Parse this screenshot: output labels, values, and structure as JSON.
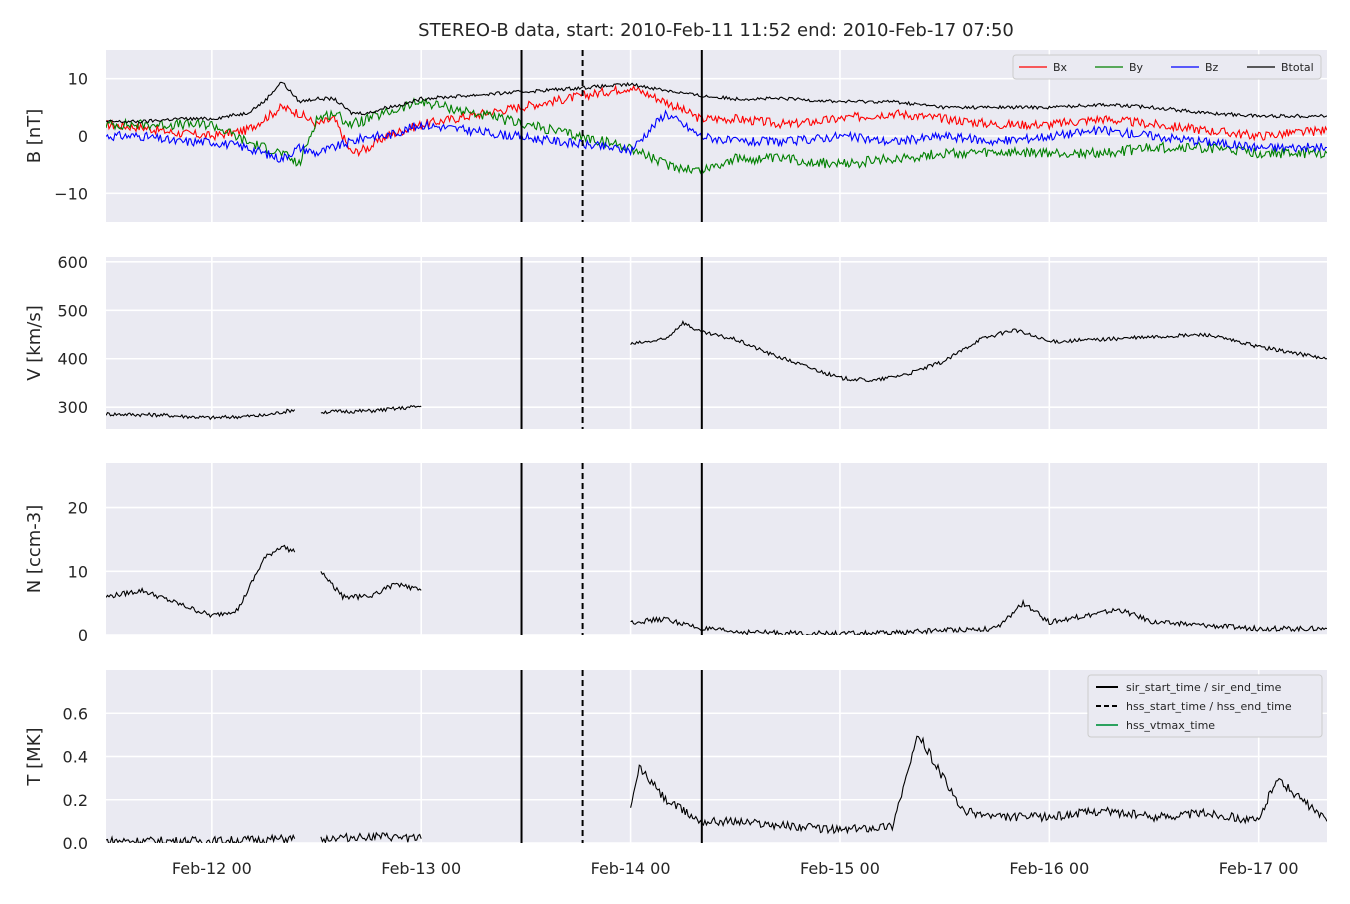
{
  "chart_data": {
    "type": "line",
    "title": "STEREO-B data, start: 2010-Feb-11 11:52  end: 2010-Feb-17 07:50",
    "x_range": [
      "2010-02-11T11:52",
      "2010-02-17T07:50"
    ],
    "x_ticks": [
      {
        "t": "2010-02-12T00:00",
        "label": "Feb-12 00"
      },
      {
        "t": "2010-02-13T00:00",
        "label": "Feb-13 00"
      },
      {
        "t": "2010-02-14T00:00",
        "label": "Feb-14 00"
      },
      {
        "t": "2010-02-15T00:00",
        "label": "Feb-15 00"
      },
      {
        "t": "2010-02-16T00:00",
        "label": "Feb-16 00"
      },
      {
        "t": "2010-02-17T00:00",
        "label": "Feb-17 00"
      }
    ],
    "grid": true,
    "event_lines": [
      {
        "t": "2010-02-13T11:30",
        "style": "solid",
        "kind": "sir_start_time"
      },
      {
        "t": "2010-02-13T18:30",
        "style": "dashed",
        "kind": "hss_start_time"
      },
      {
        "t": "2010-02-14T08:10",
        "style": "solid",
        "kind": "sir_end_time"
      }
    ],
    "panels": [
      {
        "id": "B",
        "ylabel": "B [nT]",
        "ylim": [
          -15,
          15
        ],
        "yticks": [
          -10,
          0,
          10
        ],
        "legend_placement": "top-right",
        "series": [
          {
            "name": "Bx",
            "color": "#ff0000",
            "x": [
              "2010-02-11T11:52",
              "2010-02-11T16:00",
              "2010-02-11T20:00",
              "2010-02-12T00:00",
              "2010-02-12T04:00",
              "2010-02-12T06:00",
              "2010-02-12T08:00",
              "2010-02-12T10:00",
              "2010-02-12T12:00",
              "2010-02-12T14:00",
              "2010-02-12T16:00",
              "2010-02-12T18:00",
              "2010-02-12T20:00",
              "2010-02-12T22:00",
              "2010-02-13T00:00",
              "2010-02-14T00:00",
              "2010-02-14T04:00",
              "2010-02-14T08:00",
              "2010-02-14T12:00",
              "2010-02-14T18:00",
              "2010-02-15T00:00",
              "2010-02-15T06:00",
              "2010-02-15T12:00",
              "2010-02-15T18:00",
              "2010-02-16T00:00",
              "2010-02-16T06:00",
              "2010-02-16T12:00",
              "2010-02-16T18:00",
              "2010-02-17T00:00",
              "2010-02-17T07:50"
            ],
            "values": [
              2,
              1.5,
              0.5,
              0,
              1,
              3,
              5,
              4,
              2,
              3,
              -3,
              -2,
              0,
              1,
              2,
              8.5,
              6,
              3,
              3,
              2,
              3,
              4,
              3,
              2,
              2,
              3,
              2,
              1,
              0,
              1
            ]
          },
          {
            "name": "By",
            "color": "#008000",
            "x": [
              "2010-02-11T11:52",
              "2010-02-11T16:00",
              "2010-02-11T20:00",
              "2010-02-12T00:00",
              "2010-02-12T04:00",
              "2010-02-12T06:00",
              "2010-02-12T08:00",
              "2010-02-12T10:00",
              "2010-02-12T12:00",
              "2010-02-12T14:00",
              "2010-02-12T16:00",
              "2010-02-12T18:00",
              "2010-02-12T20:00",
              "2010-02-12T22:00",
              "2010-02-13T00:00",
              "2010-02-14T00:00",
              "2010-02-14T04:00",
              "2010-02-14T08:00",
              "2010-02-14T12:00",
              "2010-02-14T18:00",
              "2010-02-15T00:00",
              "2010-02-15T06:00",
              "2010-02-15T12:00",
              "2010-02-15T18:00",
              "2010-02-16T00:00",
              "2010-02-16T06:00",
              "2010-02-16T12:00",
              "2010-02-16T18:00",
              "2010-02-17T00:00",
              "2010-02-17T07:50"
            ],
            "values": [
              2,
              2,
              2,
              2,
              -1,
              -2,
              -3,
              -5,
              3,
              4,
              2,
              3,
              4,
              5,
              6,
              -2,
              -5,
              -6,
              -4,
              -4,
              -5,
              -4,
              -3,
              -3,
              -3,
              -3,
              -2,
              -2,
              -3,
              -3
            ]
          },
          {
            "name": "Bz",
            "color": "#0000ff",
            "x": [
              "2010-02-11T11:52",
              "2010-02-11T16:00",
              "2010-02-11T20:00",
              "2010-02-12T00:00",
              "2010-02-12T04:00",
              "2010-02-12T06:00",
              "2010-02-12T08:00",
              "2010-02-12T10:00",
              "2010-02-12T12:00",
              "2010-02-12T14:00",
              "2010-02-12T16:00",
              "2010-02-12T18:00",
              "2010-02-12T20:00",
              "2010-02-12T22:00",
              "2010-02-13T00:00",
              "2010-02-14T00:00",
              "2010-02-14T04:00",
              "2010-02-14T08:00",
              "2010-02-14T12:00",
              "2010-02-14T18:00",
              "2010-02-15T00:00",
              "2010-02-15T06:00",
              "2010-02-15T12:00",
              "2010-02-15T18:00",
              "2010-02-16T00:00",
              "2010-02-16T06:00",
              "2010-02-16T12:00",
              "2010-02-16T18:00",
              "2010-02-17T00:00",
              "2010-02-17T07:50"
            ],
            "values": [
              0,
              0,
              -1,
              -1,
              -2,
              -3,
              -4,
              -2,
              -3,
              -2,
              -1,
              0,
              0,
              1,
              2,
              -2.5,
              4,
              0,
              -1,
              -1,
              0,
              -1,
              0,
              -1,
              0,
              1,
              0,
              -1,
              -2,
              -2
            ]
          },
          {
            "name": "Btotal",
            "color": "#000000",
            "x": [
              "2010-02-11T11:52",
              "2010-02-11T16:00",
              "2010-02-11T20:00",
              "2010-02-12T00:00",
              "2010-02-12T04:00",
              "2010-02-12T06:00",
              "2010-02-12T08:00",
              "2010-02-12T10:00",
              "2010-02-12T12:00",
              "2010-02-12T14:00",
              "2010-02-12T16:00",
              "2010-02-12T18:00",
              "2010-02-12T20:00",
              "2010-02-12T22:00",
              "2010-02-13T00:00",
              "2010-02-14T00:00",
              "2010-02-14T04:00",
              "2010-02-14T08:00",
              "2010-02-14T12:00",
              "2010-02-14T18:00",
              "2010-02-15T00:00",
              "2010-02-15T06:00",
              "2010-02-15T12:00",
              "2010-02-15T18:00",
              "2010-02-16T00:00",
              "2010-02-16T06:00",
              "2010-02-16T12:00",
              "2010-02-16T18:00",
              "2010-02-17T00:00",
              "2010-02-17T07:50"
            ],
            "values": [
              2.5,
              2.5,
              3,
              3,
              4,
              6,
              9.5,
              6,
              6.5,
              6.5,
              4,
              4,
              5,
              5.5,
              6.5,
              9,
              8,
              7,
              6.5,
              6.5,
              6,
              6,
              5,
              5,
              5,
              5.5,
              5,
              4,
              3.5,
              3.5
            ]
          }
        ]
      },
      {
        "id": "V",
        "ylabel": "V [km/s]",
        "ylim": [
          255,
          610
        ],
        "yticks": [
          300,
          400,
          500,
          600
        ],
        "series": [
          {
            "name": "",
            "color": "#000000",
            "segments": [
              {
                "x": [
                  "2010-02-11T11:52",
                  "2010-02-11T18:00",
                  "2010-02-12T00:00",
                  "2010-02-12T06:00",
                  "2010-02-12T09:30"
                ],
                "values": [
                  286,
                  284,
                  278,
                  283,
                  295
                ]
              },
              {
                "x": [
                  "2010-02-12T12:30",
                  "2010-02-12T18:00",
                  "2010-02-12T22:00",
                  "2010-02-13T00:00"
                ],
                "values": [
                  290,
                  292,
                  298,
                  302
                ]
              },
              {
                "x": [
                  "2010-02-14T00:00",
                  "2010-02-14T04:00",
                  "2010-02-14T06:00",
                  "2010-02-14T08:00",
                  "2010-02-14T12:00",
                  "2010-02-14T16:00",
                  "2010-02-14T20:00",
                  "2010-02-15T00:00",
                  "2010-02-15T04:00",
                  "2010-02-15T08:00",
                  "2010-02-15T12:00",
                  "2010-02-15T16:00",
                  "2010-02-15T20:00",
                  "2010-02-16T00:00",
                  "2010-02-16T06:00",
                  "2010-02-16T12:00",
                  "2010-02-16T18:00",
                  "2010-02-17T00:00",
                  "2010-02-17T07:50"
                ],
                "values": [
                  430,
                  440,
                  475,
                  455,
                  440,
                  410,
                  385,
                  360,
                  355,
                  370,
                  395,
                  440,
                  460,
                  435,
                  440,
                  445,
                  450,
                  425,
                  400
                ]
              }
            ]
          }
        ]
      },
      {
        "id": "N",
        "ylabel": "N [ccm-3]",
        "ylim": [
          0,
          27
        ],
        "yticks": [
          0,
          10,
          20
        ],
        "series": [
          {
            "name": "",
            "color": "#000000",
            "segments": [
              {
                "x": [
                  "2010-02-11T11:52",
                  "2010-02-11T16:00",
                  "2010-02-11T20:00",
                  "2010-02-12T00:00",
                  "2010-02-12T03:00",
                  "2010-02-12T06:00",
                  "2010-02-12T08:00",
                  "2010-02-12T09:30"
                ],
                "values": [
                  6,
                  7,
                  5,
                  3,
                  4,
                  12,
                  14,
                  13
                ]
              },
              {
                "x": [
                  "2010-02-12T12:30",
                  "2010-02-12T15:00",
                  "2010-02-12T18:00",
                  "2010-02-12T21:00",
                  "2010-02-13T00:00"
                ],
                "values": [
                  10,
                  6,
                  6,
                  8,
                  7
                ]
              },
              {
                "x": [
                  "2010-02-14T00:00",
                  "2010-02-14T04:00",
                  "2010-02-14T08:00",
                  "2010-02-14T12:00",
                  "2010-02-14T18:00",
                  "2010-02-15T00:00",
                  "2010-02-15T06:00",
                  "2010-02-15T12:00",
                  "2010-02-15T18:00",
                  "2010-02-15T21:00",
                  "2010-02-16T00:00",
                  "2010-02-16T04:00",
                  "2010-02-16T08:00",
                  "2010-02-16T12:00",
                  "2010-02-16T18:00",
                  "2010-02-17T00:00",
                  "2010-02-17T07:50"
                ],
                "values": [
                  2,
                  2.5,
                  1,
                  0.5,
                  0.3,
                  0.2,
                  0.3,
                  0.8,
                  1,
                  5,
                  2,
                  3,
                  4,
                  2,
                  1.5,
                  1,
                  1
                ]
              }
            ]
          }
        ]
      },
      {
        "id": "T",
        "ylabel": "T [MK]",
        "ylim": [
          0,
          0.8
        ],
        "yticks": [
          0.0,
          0.2,
          0.4,
          0.6
        ],
        "tick_labels": [
          "0.0",
          "0.2",
          "0.4",
          "0.6"
        ],
        "legend_placement": "top-right",
        "legend": [
          {
            "label": "sir_start_time / sir_end_time",
            "color": "#000000",
            "style": "solid"
          },
          {
            "label": "hss_start_time / hss_end_time",
            "color": "#000000",
            "style": "dashed"
          },
          {
            "label": "hss_vtmax_time",
            "color": "#2ca25f",
            "style": "solid"
          }
        ],
        "series": [
          {
            "name": "",
            "color": "#000000",
            "segments": [
              {
                "x": [
                  "2010-02-11T11:52",
                  "2010-02-12T00:00",
                  "2010-02-12T09:30"
                ],
                "values": [
                  0.01,
                  0.01,
                  0.02
                ]
              },
              {
                "x": [
                  "2010-02-12T12:30",
                  "2010-02-12T18:00",
                  "2010-02-13T00:00"
                ],
                "values": [
                  0.02,
                  0.03,
                  0.02
                ]
              },
              {
                "x": [
                  "2010-02-14T00:00",
                  "2010-02-14T01:00",
                  "2010-02-14T04:00",
                  "2010-02-14T08:00",
                  "2010-02-14T12:00",
                  "2010-02-14T18:00",
                  "2010-02-15T00:00",
                  "2010-02-15T06:00",
                  "2010-02-15T09:00",
                  "2010-02-15T14:00",
                  "2010-02-15T18:00",
                  "2010-02-16T00:00",
                  "2010-02-16T06:00",
                  "2010-02-16T12:00",
                  "2010-02-16T18:00",
                  "2010-02-17T00:00",
                  "2010-02-17T02:00",
                  "2010-02-17T07:50"
                ],
                "values": [
                  0.15,
                  0.35,
                  0.2,
                  0.1,
                  0.1,
                  0.08,
                  0.06,
                  0.08,
                  0.5,
                  0.15,
                  0.12,
                  0.12,
                  0.15,
                  0.12,
                  0.14,
                  0.1,
                  0.3,
                  0.1
                ]
              }
            ]
          }
        ]
      }
    ]
  }
}
